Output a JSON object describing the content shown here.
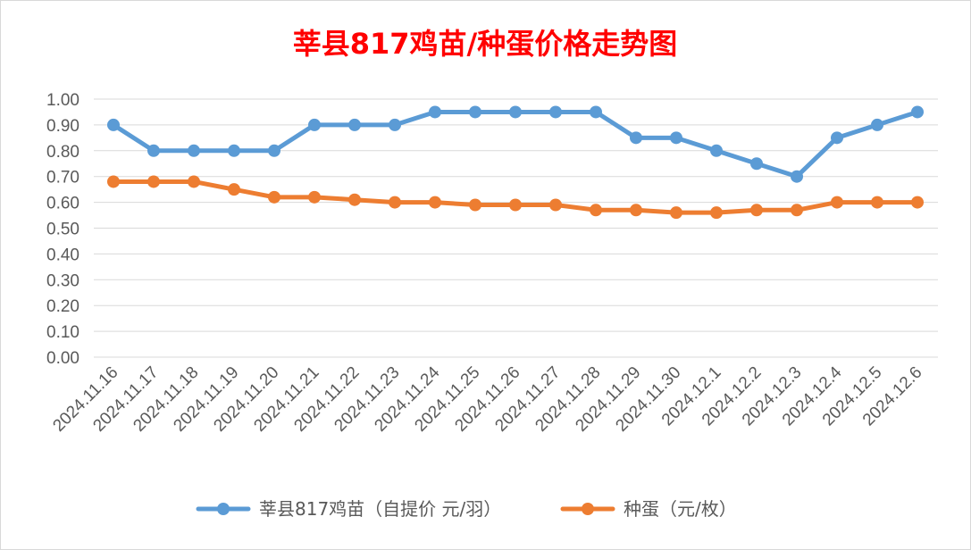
{
  "chart_data": {
    "type": "line",
    "title": "莘县817鸡苗/种蛋价格走势图",
    "title_color": "#ff0000",
    "categories": [
      "2024.11.16",
      "2024.11.17",
      "2024.11.18",
      "2024.11.19",
      "2024.11.20",
      "2024.11.21",
      "2024.11.22",
      "2024.11.23",
      "2024.11.24",
      "2024.11.25",
      "2024.11.26",
      "2024.11.27",
      "2024.11.28",
      "2024.11.29",
      "2024.11.30",
      "2024.12.1",
      "2024.12.2",
      "2024.12.3",
      "2024.12.4",
      "2024.12.5",
      "2024.12.6"
    ],
    "series": [
      {
        "name": "莘县817鸡苗（自提价 元/羽）",
        "color": "#5b9bd5",
        "values": [
          0.9,
          0.8,
          0.8,
          0.8,
          0.8,
          0.9,
          0.9,
          0.9,
          0.95,
          0.95,
          0.95,
          0.95,
          0.95,
          0.85,
          0.85,
          0.8,
          0.75,
          0.7,
          0.85,
          0.9,
          0.95
        ]
      },
      {
        "name": "种蛋（元/枚）",
        "color": "#ed7d31",
        "values": [
          0.68,
          0.68,
          0.68,
          0.65,
          0.62,
          0.62,
          0.61,
          0.6,
          0.6,
          0.59,
          0.59,
          0.59,
          0.57,
          0.57,
          0.56,
          0.56,
          0.57,
          0.57,
          0.6,
          0.6,
          0.6
        ]
      }
    ],
    "yticks": [
      "0.00",
      "0.10",
      "0.20",
      "0.30",
      "0.40",
      "0.50",
      "0.60",
      "0.70",
      "0.80",
      "0.90",
      "1.00"
    ],
    "ylim": [
      0,
      1.0
    ],
    "grid": true,
    "legend_position": "bottom",
    "xlabel": "",
    "ylabel": ""
  }
}
